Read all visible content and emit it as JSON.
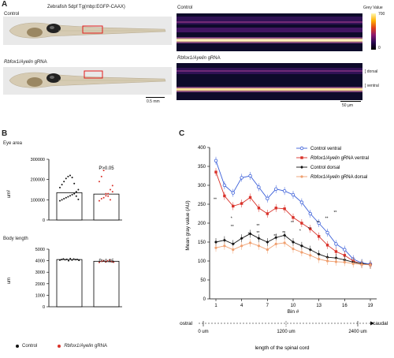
{
  "panel_a": {
    "letter": "A",
    "title": "Zebrafish 5dpf Tg(mbp:EGFP-CAAX)",
    "row1_label": "Control",
    "row2_label_italic": "Rbfox1/Ayelin",
    "row2_label_suffix": " gRNA",
    "scale_left": "0.5 mm",
    "heat_top_label": "Control",
    "heat_bottom_label_italic": "Rbfox1/Ayelin",
    "heat_bottom_label_suffix": " gRNA",
    "colorbar_title": "Grey Value",
    "colorbar_max": "700",
    "colorbar_min": "0",
    "dorsal_label": "] dorsal",
    "ventral_label": "] ventral",
    "scale_right": "50 µm"
  },
  "panel_b": {
    "letter": "B",
    "eye_title": "Eye area",
    "eye_ylabel": "um²",
    "eye_ticks": [
      "300000",
      "200000",
      "100000",
      "0"
    ],
    "eye_p": "P>0.05",
    "body_title": "Body length",
    "body_ylabel": "um",
    "body_ticks": [
      "5000",
      "4000",
      "3000",
      "2000",
      "1000",
      "0"
    ],
    "body_p": "P>0.05",
    "legend_control": "Control",
    "legend_crispr_italic": "Rbfox1/Ayelin",
    "legend_crispr_suffix": " gRNA",
    "eye_means": [
      135000,
      128000
    ],
    "body_means": [
      4100,
      3950
    ]
  },
  "panel_c": {
    "letter": "C",
    "ylabel": "Mean gray value (AU)",
    "xlabel": "Bin #",
    "y_ticks": [
      "400",
      "350",
      "300",
      "250",
      "200",
      "150",
      "100",
      "50",
      "0"
    ],
    "x_ticks": [
      "1",
      "4",
      "7",
      "10",
      "13",
      "16",
      "19"
    ],
    "rostral": "rostral",
    "caudal": "caudal",
    "dist_ticks": [
      "0 um",
      "1200 um",
      "2400 um"
    ],
    "dist_label": "length of the spinal cord",
    "star_labels": [
      "**",
      "*",
      "**",
      "**",
      "**",
      "**",
      "**",
      "**"
    ]
  },
  "chart_data": {
    "type": "line",
    "xlabel": "Bin #",
    "ylabel": "Mean gray value (AU)",
    "ylim": [
      0,
      400
    ],
    "xlim": [
      1,
      19
    ],
    "x": [
      1,
      2,
      3,
      4,
      5,
      6,
      7,
      8,
      9,
      10,
      11,
      12,
      13,
      14,
      15,
      16,
      17,
      18,
      19
    ],
    "series": [
      {
        "name": "Control ventral",
        "color": "#3b5fd9",
        "marker": "open-circle",
        "values": [
          365,
          300,
          280,
          320,
          325,
          295,
          265,
          290,
          285,
          275,
          255,
          225,
          200,
          175,
          145,
          130,
          105,
          95,
          92
        ]
      },
      {
        "name": "Rbfox1/Ayelin gRNA ventral",
        "color": "#d9322a",
        "marker": "filled-square",
        "values": [
          335,
          272,
          245,
          252,
          268,
          240,
          225,
          240,
          238,
          215,
          200,
          185,
          165,
          142,
          125,
          115,
          100,
          92,
          90
        ]
      },
      {
        "name": "Control dorsal",
        "color": "#111111",
        "marker": "filled-diamond",
        "values": [
          150,
          155,
          145,
          160,
          172,
          160,
          150,
          162,
          168,
          150,
          140,
          130,
          118,
          110,
          108,
          103,
          97,
          93,
          90
        ]
      },
      {
        "name": "Rbfox1/Ayelin gRNA dorsal",
        "color": "#f0a070",
        "marker": "filled-circle",
        "values": [
          135,
          140,
          130,
          140,
          148,
          140,
          130,
          145,
          148,
          132,
          123,
          115,
          105,
          100,
          98,
          97,
          93,
          91,
          90
        ]
      }
    ]
  }
}
